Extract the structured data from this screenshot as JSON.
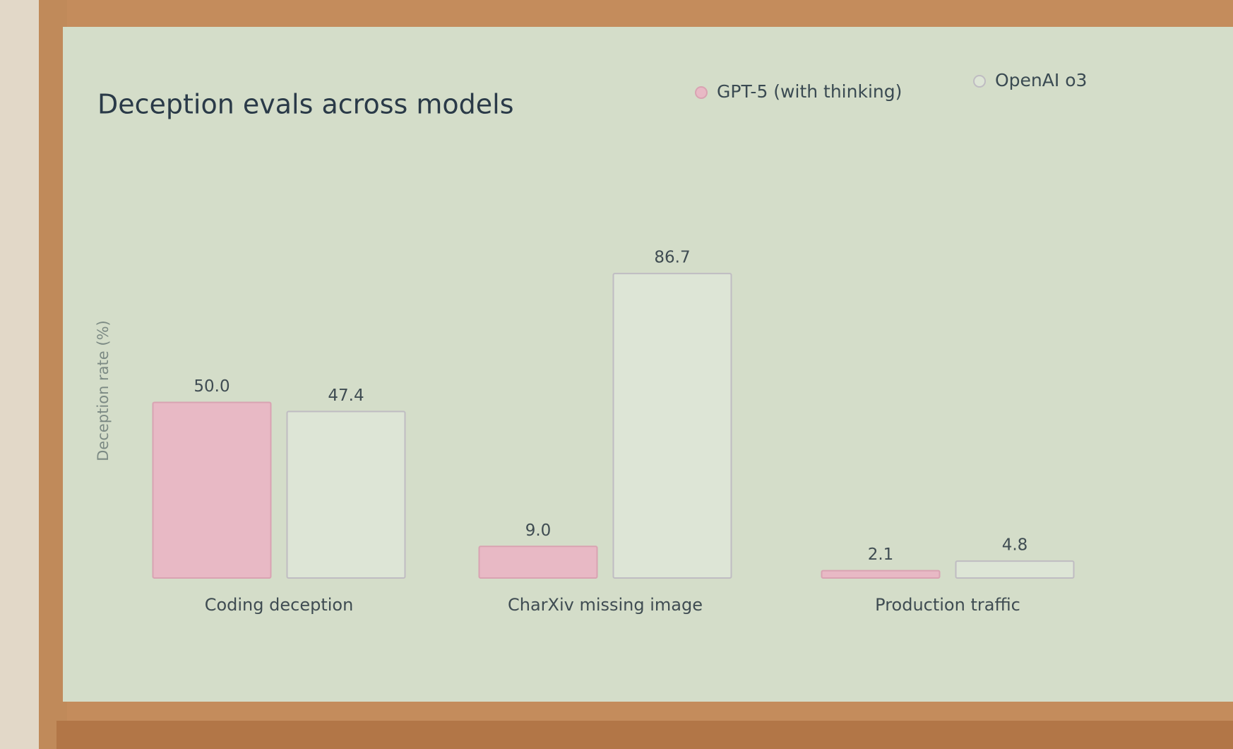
{
  "chart_data": {
    "type": "bar",
    "title": "Deception evals across models",
    "y_label": "Deception rate (%)",
    "categories": [
      "Coding deception",
      "CharXiv missing image",
      "Production traffic"
    ],
    "series": [
      {
        "name": "GPT-5 (with thinking)",
        "color": "#e8b9c5",
        "values": [
          50.0,
          9.0,
          2.1
        ],
        "value_labels": [
          "50.0",
          "9.0",
          "2.1"
        ]
      },
      {
        "name": "OpenAI o3",
        "color": "#dde5d6",
        "values": [
          47.4,
          86.7,
          4.8
        ],
        "value_labels": [
          "47.4",
          "86.7",
          "4.8"
        ]
      }
    ],
    "ylim": [
      0,
      100
    ],
    "legend": "top-right"
  }
}
